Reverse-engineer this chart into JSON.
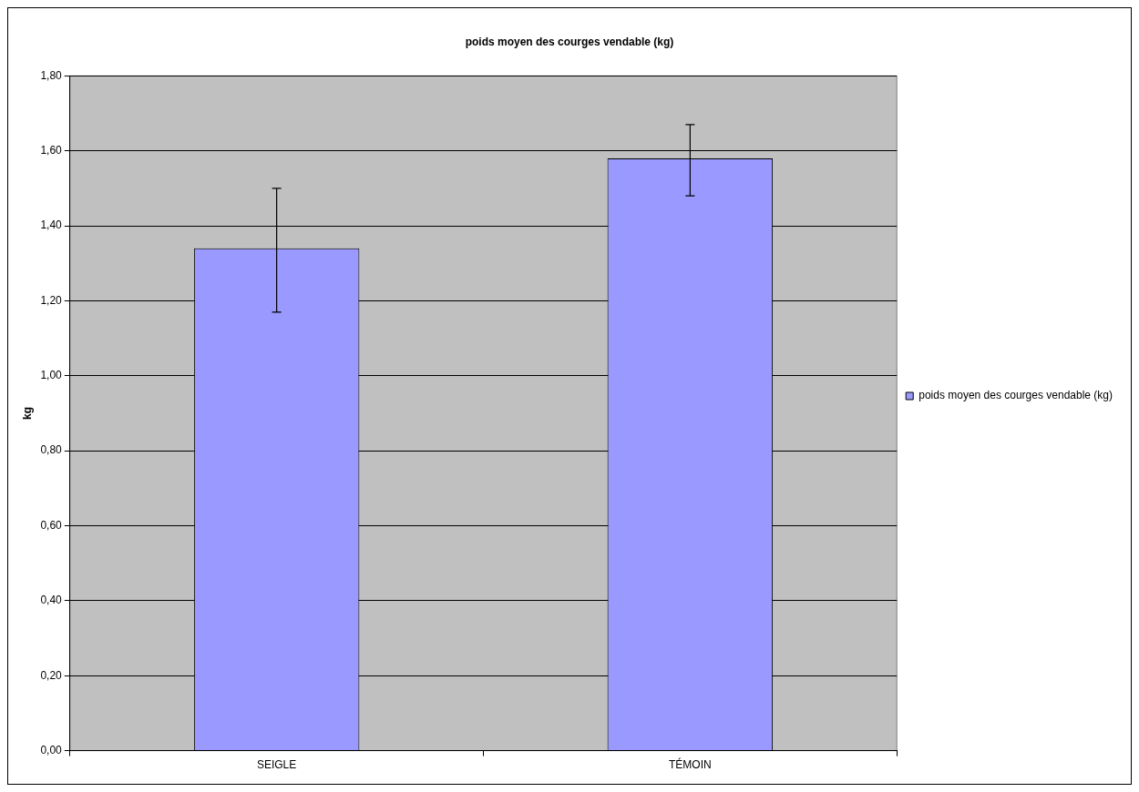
{
  "chart_data": {
    "type": "bar",
    "title": "poids moyen des courges vendable (kg)",
    "ylabel": "kg",
    "categories": [
      "SEIGLE",
      "TÉMOIN"
    ],
    "series": [
      {
        "name": "poids moyen des courges vendable (kg)",
        "color": "#9999ff",
        "values": [
          1.34,
          1.58
        ],
        "errors": [
          [
            1.17,
            1.5
          ],
          [
            1.48,
            1.67
          ]
        ]
      }
    ],
    "ylim": [
      0,
      1.8
    ],
    "yticks": [
      {
        "value": 0,
        "label": "0,00"
      },
      {
        "value": 0.2,
        "label": "0,20"
      },
      {
        "value": 0.4,
        "label": "0,40"
      },
      {
        "value": 0.6,
        "label": "0,60"
      },
      {
        "value": 0.8,
        "label": "0,80"
      },
      {
        "value": 1,
        "label": "1,00"
      },
      {
        "value": 1.2,
        "label": "1,20"
      },
      {
        "value": 1.4,
        "label": "1,40"
      },
      {
        "value": 1.6,
        "label": "1,60"
      },
      {
        "value": 1.8,
        "label": "1,80"
      }
    ],
    "grid": "y",
    "legend": "right"
  }
}
